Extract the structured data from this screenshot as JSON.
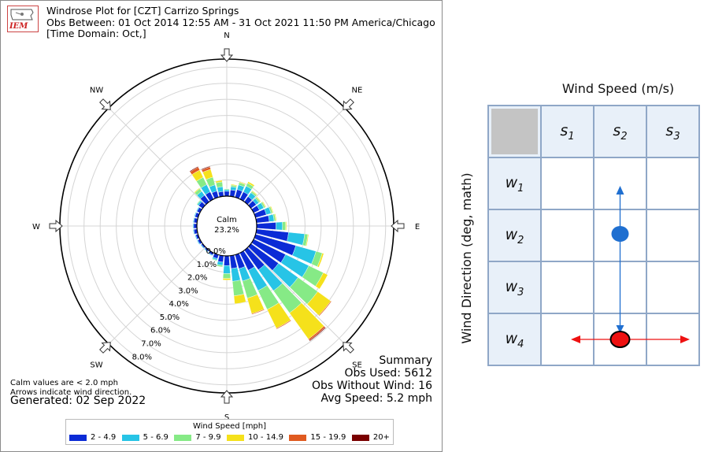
{
  "windrose": {
    "logo_text": "IEM",
    "title_lines": [
      "Windrose Plot for [CZT] Carrizo Springs",
      "Obs Between: 01 Oct 2014 12:55 AM - 31 Oct 2021 11:50 PM America/Chicago",
      "[Time Domain: Oct,]"
    ],
    "directions": [
      "N",
      "NE",
      "E",
      "SE",
      "S",
      "SW",
      "W",
      "NW"
    ],
    "calm_label": "Calm",
    "calm_value": "23.2%",
    "radial_labels": [
      "0.0%",
      "1.0%",
      "2.0%",
      "3.0%",
      "4.0%",
      "5.0%",
      "6.0%",
      "7.0%",
      "8.0%"
    ],
    "summary": {
      "heading": "Summary",
      "obs_used": "Obs Used: 5612",
      "obs_without_wind": "Obs Without Wind: 16",
      "avg_speed": "Avg Speed: 5.2 mph"
    },
    "footnote_1": "Calm values are < 2.0 mph",
    "footnote_2": "Arrows indicate wind direction.",
    "generated": "Generated: 02 Sep 2022",
    "legend_title": "Wind Speed [mph]",
    "legend": [
      {
        "label": "2 - 4.9",
        "color": "#0b2bd6"
      },
      {
        "label": "5 - 6.9",
        "color": "#27c4e6"
      },
      {
        "label": "7 - 9.9",
        "color": "#86ea86"
      },
      {
        "label": "10 - 14.9",
        "color": "#f5e11b"
      },
      {
        "label": "15 - 19.9",
        "color": "#e05a20"
      },
      {
        "label": "20+",
        "color": "#7a0000"
      }
    ]
  },
  "chart_data": {
    "type": "windrose",
    "units": "percent",
    "rmax": 8.5,
    "calm_percent": 23.2,
    "bin_labels": [
      "2 - 4.9",
      "5 - 6.9",
      "7 - 9.9",
      "10 - 14.9",
      "15 - 19.9",
      "20+"
    ],
    "sectors": [
      {
        "deg": 0,
        "values": [
          0.3,
          0.1,
          0.05,
          0.0,
          0.0,
          0.0
        ]
      },
      {
        "deg": 10,
        "values": [
          0.4,
          0.2,
          0.1,
          0.05,
          0.0,
          0.0
        ]
      },
      {
        "deg": 20,
        "values": [
          0.5,
          0.3,
          0.15,
          0.05,
          0.0,
          0.0
        ]
      },
      {
        "deg": 30,
        "values": [
          0.5,
          0.4,
          0.2,
          0.1,
          0.0,
          0.0
        ]
      },
      {
        "deg": 40,
        "values": [
          0.4,
          0.3,
          0.1,
          0.05,
          0.0,
          0.0
        ]
      },
      {
        "deg": 50,
        "values": [
          0.4,
          0.2,
          0.1,
          0.05,
          0.0,
          0.0
        ]
      },
      {
        "deg": 60,
        "values": [
          0.4,
          0.3,
          0.1,
          0.05,
          0.0,
          0.0
        ]
      },
      {
        "deg": 70,
        "values": [
          0.7,
          0.3,
          0.1,
          0.05,
          0.0,
          0.0
        ]
      },
      {
        "deg": 80,
        "values": [
          0.8,
          0.3,
          0.1,
          0.05,
          0.0,
          0.0
        ]
      },
      {
        "deg": 90,
        "values": [
          1.2,
          0.4,
          0.2,
          0.05,
          0.0,
          0.0
        ]
      },
      {
        "deg": 100,
        "values": [
          2.0,
          1.0,
          0.2,
          0.05,
          0.0,
          0.0
        ]
      },
      {
        "deg": 110,
        "values": [
          2.6,
          1.3,
          0.4,
          0.1,
          0.0,
          0.0
        ]
      },
      {
        "deg": 120,
        "values": [
          2.2,
          1.6,
          1.0,
          0.3,
          0.0,
          0.0
        ]
      },
      {
        "deg": 130,
        "values": [
          2.1,
          1.5,
          1.5,
          1.0,
          0.05,
          0.0
        ]
      },
      {
        "deg": 140,
        "values": [
          1.5,
          1.6,
          1.7,
          2.0,
          0.1,
          0.05
        ]
      },
      {
        "deg": 150,
        "values": [
          1.2,
          1.4,
          1.3,
          1.3,
          0.05,
          0.0
        ]
      },
      {
        "deg": 160,
        "values": [
          0.9,
          0.8,
          1.1,
          1.0,
          0.05,
          0.0
        ]
      },
      {
        "deg": 170,
        "values": [
          0.8,
          0.8,
          0.9,
          0.5,
          0.0,
          0.0
        ]
      },
      {
        "deg": 180,
        "values": [
          0.6,
          0.5,
          0.3,
          0.1,
          0.0,
          0.0
        ]
      },
      {
        "deg": 190,
        "values": [
          0.4,
          0.2,
          0.1,
          0.0,
          0.0,
          0.0
        ]
      },
      {
        "deg": 200,
        "values": [
          0.25,
          0.1,
          0.05,
          0.0,
          0.0,
          0.0
        ]
      },
      {
        "deg": 210,
        "values": [
          0.15,
          0.05,
          0.0,
          0.0,
          0.0,
          0.0
        ]
      },
      {
        "deg": 220,
        "values": [
          0.1,
          0.05,
          0.0,
          0.0,
          0.0,
          0.0
        ]
      },
      {
        "deg": 230,
        "values": [
          0.1,
          0.05,
          0.0,
          0.0,
          0.0,
          0.0
        ]
      },
      {
        "deg": 240,
        "values": [
          0.15,
          0.05,
          0.0,
          0.0,
          0.0,
          0.0
        ]
      },
      {
        "deg": 250,
        "values": [
          0.15,
          0.05,
          0.0,
          0.0,
          0.0,
          0.0
        ]
      },
      {
        "deg": 260,
        "values": [
          0.2,
          0.05,
          0.0,
          0.0,
          0.0,
          0.0
        ]
      },
      {
        "deg": 270,
        "values": [
          0.2,
          0.05,
          0.0,
          0.0,
          0.0,
          0.0
        ]
      },
      {
        "deg": 280,
        "values": [
          0.2,
          0.05,
          0.0,
          0.0,
          0.0,
          0.0
        ]
      },
      {
        "deg": 290,
        "values": [
          0.2,
          0.05,
          0.0,
          0.0,
          0.0,
          0.0
        ]
      },
      {
        "deg": 300,
        "values": [
          0.2,
          0.05,
          0.0,
          0.0,
          0.0,
          0.0
        ]
      },
      {
        "deg": 310,
        "values": [
          0.3,
          0.1,
          0.05,
          0.0,
          0.0,
          0.0
        ]
      },
      {
        "deg": 320,
        "values": [
          0.5,
          0.3,
          0.2,
          0.05,
          0.0,
          0.0
        ]
      },
      {
        "deg": 330,
        "values": [
          0.5,
          0.5,
          0.5,
          0.5,
          0.2,
          0.05
        ]
      },
      {
        "deg": 340,
        "values": [
          0.4,
          0.4,
          0.5,
          0.5,
          0.15,
          0.05
        ]
      },
      {
        "deg": 350,
        "values": [
          0.3,
          0.3,
          0.3,
          0.1,
          0.0,
          0.0
        ]
      }
    ]
  },
  "grid_diagram": {
    "top_label": "Wind Speed (m/s)",
    "side_label": "Wind Direction (deg, math)",
    "columns": [
      {
        "base": "s",
        "sub": "1"
      },
      {
        "base": "s",
        "sub": "2"
      },
      {
        "base": "s",
        "sub": "3"
      }
    ],
    "rows": [
      {
        "base": "w",
        "sub": "1"
      },
      {
        "base": "w",
        "sub": "2"
      },
      {
        "base": "w",
        "sub": "3"
      },
      {
        "base": "w",
        "sub": "4"
      }
    ],
    "header_fill": "#e8f0f9",
    "corner_fill": "#c4c4c4",
    "line_color": "#8fa7c7",
    "blue_color": "#1f6fd0",
    "red_color": "#ee1111"
  }
}
